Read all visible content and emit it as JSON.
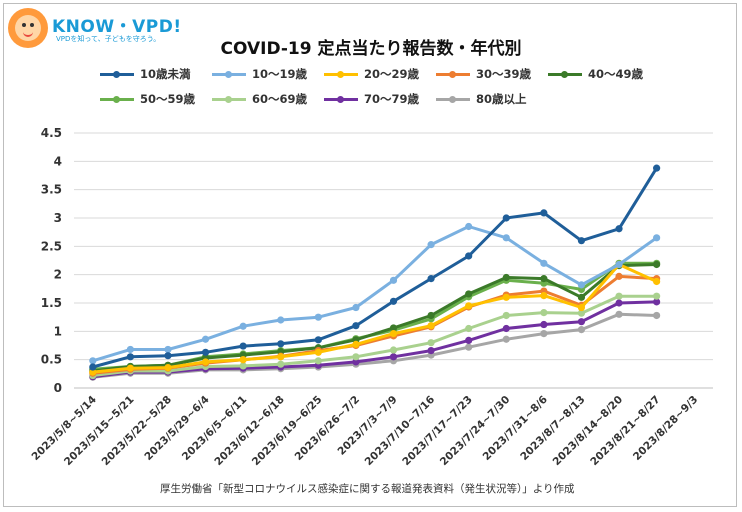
{
  "logo": {
    "text": "KNOW・VPD!",
    "tagline": "VPDを知って、子どもを守ろう。"
  },
  "chart_data": {
    "type": "line",
    "title": "COVID-19 定点当たり報告数・年代別",
    "ylim": [
      0,
      4.5
    ],
    "yticks": [
      "0",
      "0.5",
      "1",
      "1.5",
      "2",
      "2.5",
      "3",
      "3.5",
      "4",
      "4.5"
    ],
    "grid": true,
    "legend_position": "top",
    "categories": [
      "2023/5/8~5/14",
      "2023/5/15~5/21",
      "2023/5/22~5/28",
      "2023/5/29~6/4",
      "2023/6/5~6/11",
      "2023/6/12~6/18",
      "2023/6/19~6/25",
      "2023/6/26~7/2",
      "2023/7/3~7/9",
      "2023/7/10~7/16",
      "2023/7/17~7/23",
      "2023/7/24~7/30",
      "2023/7/31~8/6",
      "2023/8/7~8/13",
      "2023/8/14~8/20",
      "2023/8/21~8/27",
      "2023/8/28~9/3"
    ],
    "series": [
      {
        "name": "10歳未満",
        "color": "#1f5e99",
        "values": [
          0.37,
          0.55,
          0.57,
          0.63,
          0.74,
          0.78,
          0.85,
          1.1,
          1.53,
          1.93,
          2.33,
          3.0,
          3.09,
          2.6,
          2.81,
          3.88,
          null
        ]
      },
      {
        "name": "10～19歳",
        "color": "#7ab0e0",
        "values": [
          0.48,
          0.68,
          0.68,
          0.86,
          1.09,
          1.2,
          1.25,
          1.42,
          1.9,
          2.53,
          2.85,
          2.65,
          2.2,
          1.82,
          2.18,
          2.65,
          null
        ]
      },
      {
        "name": "20～29歳",
        "color": "#ffc000",
        "values": [
          0.28,
          0.35,
          0.36,
          0.46,
          0.5,
          0.55,
          0.63,
          0.77,
          0.96,
          1.1,
          1.45,
          1.6,
          1.63,
          1.42,
          2.18,
          1.88,
          null
        ]
      },
      {
        "name": "30～39歳",
        "color": "#ed7d31",
        "values": [
          0.26,
          0.33,
          0.35,
          0.44,
          0.5,
          0.56,
          0.66,
          0.75,
          0.92,
          1.08,
          1.43,
          1.64,
          1.71,
          1.46,
          1.97,
          1.93,
          null
        ]
      },
      {
        "name": "40～49歳",
        "color": "#3b7a29",
        "values": [
          0.3,
          0.38,
          0.4,
          0.53,
          0.58,
          0.64,
          0.71,
          0.85,
          1.06,
          1.28,
          1.66,
          1.95,
          1.93,
          1.6,
          2.16,
          2.18,
          null
        ]
      },
      {
        "name": "50～59歳",
        "color": "#6ab04c",
        "values": [
          0.33,
          0.38,
          0.4,
          0.55,
          0.6,
          0.66,
          0.71,
          0.87,
          1.02,
          1.22,
          1.61,
          1.9,
          1.85,
          1.74,
          2.2,
          2.2,
          null
        ]
      },
      {
        "name": "60～69歳",
        "color": "#a9d18e",
        "values": [
          0.22,
          0.3,
          0.3,
          0.38,
          0.39,
          0.42,
          0.48,
          0.55,
          0.67,
          0.8,
          1.05,
          1.28,
          1.33,
          1.32,
          1.62,
          1.62,
          null
        ]
      },
      {
        "name": "70～79歳",
        "color": "#7030a0",
        "values": [
          0.2,
          0.28,
          0.28,
          0.34,
          0.35,
          0.37,
          0.4,
          0.46,
          0.55,
          0.66,
          0.84,
          1.05,
          1.12,
          1.17,
          1.5,
          1.52,
          null
        ]
      },
      {
        "name": "80歳以上",
        "color": "#a6a6a6",
        "values": [
          0.19,
          0.26,
          0.26,
          0.32,
          0.32,
          0.34,
          0.37,
          0.42,
          0.48,
          0.58,
          0.72,
          0.86,
          0.96,
          1.03,
          1.3,
          1.28,
          null
        ]
      }
    ]
  },
  "source": "厚生労働省「新型コロナウイルス感染症に関する報道発表資料（発生状況等）」より作成"
}
